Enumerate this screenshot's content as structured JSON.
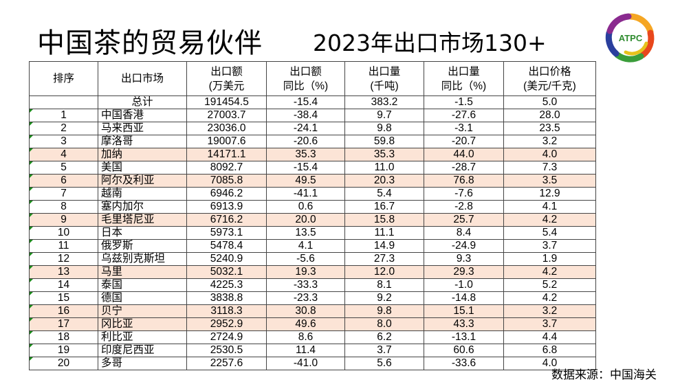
{
  "title": "中国茶的贸易伙伴",
  "subtitle": "2023年出口市场130+",
  "logo_text": "ATPC",
  "source": "数据来源：中国海关",
  "highlight_color": "#fce4d6",
  "table": {
    "headers": [
      [
        "排序"
      ],
      [
        "出口市场"
      ],
      [
        "出口额",
        "(万美元"
      ],
      [
        "出口额",
        "同比（%)"
      ],
      [
        "出口量",
        "(千吨)"
      ],
      [
        "出口量",
        "同比（%)"
      ],
      [
        "出口价格",
        "(美元/千克)"
      ]
    ],
    "total": {
      "label": "总计",
      "value": "191454.5",
      "value_yoy": "-15.4",
      "volume": "383.2",
      "volume_yoy": "-1.5",
      "price": "5.0"
    },
    "rows": [
      {
        "rank": "1",
        "market": "中国香港",
        "value": "27003.7",
        "value_yoy": "-38.4",
        "volume": "9.7",
        "volume_yoy": "-27.6",
        "price": "28.0",
        "highlight": false
      },
      {
        "rank": "2",
        "market": "马来西亚",
        "value": "23036.0",
        "value_yoy": "-24.1",
        "volume": "9.8",
        "volume_yoy": "-3.1",
        "price": "23.5",
        "highlight": false
      },
      {
        "rank": "3",
        "market": "摩洛哥",
        "value": "19007.6",
        "value_yoy": "-20.6",
        "volume": "59.8",
        "volume_yoy": "-20.7",
        "price": "3.2",
        "highlight": false
      },
      {
        "rank": "4",
        "market": "加纳",
        "value": "14171.1",
        "value_yoy": "35.3",
        "volume": "35.3",
        "volume_yoy": "44.0",
        "price": "4.0",
        "highlight": true
      },
      {
        "rank": "5",
        "market": "美国",
        "value": "8092.7",
        "value_yoy": "-15.4",
        "volume": "11.0",
        "volume_yoy": "-28.7",
        "price": "7.3",
        "highlight": false
      },
      {
        "rank": "6",
        "market": "阿尔及利亚",
        "value": "7085.8",
        "value_yoy": "49.5",
        "volume": "20.3",
        "volume_yoy": "76.8",
        "price": "3.5",
        "highlight": true
      },
      {
        "rank": "7",
        "market": "越南",
        "value": "6946.2",
        "value_yoy": "-41.1",
        "volume": "5.4",
        "volume_yoy": "-7.6",
        "price": "12.9",
        "highlight": false
      },
      {
        "rank": "8",
        "market": "塞内加尔",
        "value": "6913.9",
        "value_yoy": "0.6",
        "volume": "16.7",
        "volume_yoy": "-2.8",
        "price": "4.1",
        "highlight": false
      },
      {
        "rank": "9",
        "market": "毛里塔尼亚",
        "value": "6716.2",
        "value_yoy": "20.0",
        "volume": "15.8",
        "volume_yoy": "25.7",
        "price": "4.2",
        "highlight": true
      },
      {
        "rank": "10",
        "market": "日本",
        "value": "5973.1",
        "value_yoy": "13.5",
        "volume": "11.1",
        "volume_yoy": "8.4",
        "price": "5.4",
        "highlight": false
      },
      {
        "rank": "11",
        "market": "俄罗斯",
        "value": "5478.4",
        "value_yoy": "4.1",
        "volume": "14.9",
        "volume_yoy": "-24.9",
        "price": "3.7",
        "highlight": false
      },
      {
        "rank": "12",
        "market": "乌兹别克斯坦",
        "value": "5240.9",
        "value_yoy": "-5.6",
        "volume": "27.3",
        "volume_yoy": "9.3",
        "price": "1.9",
        "highlight": false
      },
      {
        "rank": "13",
        "market": "马里",
        "value": "5032.1",
        "value_yoy": "19.3",
        "volume": "12.0",
        "volume_yoy": "29.3",
        "price": "4.2",
        "highlight": true
      },
      {
        "rank": "14",
        "market": "泰国",
        "value": "4225.3",
        "value_yoy": "-33.3",
        "volume": "8.1",
        "volume_yoy": "-1.0",
        "price": "5.2",
        "highlight": false
      },
      {
        "rank": "15",
        "market": "德国",
        "value": "3838.8",
        "value_yoy": "-23.3",
        "volume": "9.2",
        "volume_yoy": "-14.8",
        "price": "4.2",
        "highlight": false
      },
      {
        "rank": "16",
        "market": "贝宁",
        "value": "3118.3",
        "value_yoy": "30.8",
        "volume": "9.8",
        "volume_yoy": "15.1",
        "price": "3.2",
        "highlight": true
      },
      {
        "rank": "17",
        "market": "冈比亚",
        "value": "2952.9",
        "value_yoy": "49.6",
        "volume": "8.0",
        "volume_yoy": "43.3",
        "price": "3.7",
        "highlight": true
      },
      {
        "rank": "18",
        "market": "利比亚",
        "value": "2724.9",
        "value_yoy": "8.6",
        "volume": "6.2",
        "volume_yoy": "-13.1",
        "price": "4.4",
        "highlight": false
      },
      {
        "rank": "19",
        "market": "印度尼西亚",
        "value": "2530.5",
        "value_yoy": "11.4",
        "volume": "3.7",
        "volume_yoy": "60.6",
        "price": "6.8",
        "highlight": false
      },
      {
        "rank": "20",
        "market": "多哥",
        "value": "2257.6",
        "value_yoy": "-41.0",
        "volume": "5.6",
        "volume_yoy": "-33.6",
        "price": "4.0",
        "highlight": false
      }
    ]
  }
}
